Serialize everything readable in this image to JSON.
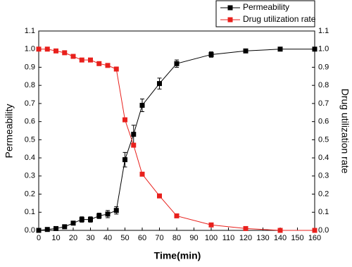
{
  "chart_data": {
    "type": "line",
    "x": [
      0,
      5,
      10,
      15,
      20,
      25,
      30,
      35,
      40,
      45,
      50,
      55,
      60,
      70,
      80,
      100,
      120,
      140,
      160
    ],
    "series": [
      {
        "name": "Permeability",
        "color": "#000000",
        "axis": "y",
        "values": [
          0.0,
          0.005,
          0.01,
          0.02,
          0.04,
          0.06,
          0.06,
          0.08,
          0.09,
          0.11,
          0.39,
          0.53,
          0.69,
          0.81,
          0.92,
          0.97,
          0.99,
          1.0,
          1.0
        ],
        "errors": [
          0.0,
          0.005,
          0.005,
          0.005,
          0.005,
          0.015,
          0.015,
          0.015,
          0.02,
          0.02,
          0.04,
          0.05,
          0.035,
          0.03,
          0.02,
          0.015,
          0.005,
          0.005,
          0.0
        ]
      },
      {
        "name": "Drug utilization rate",
        "color": "#e8201c",
        "axis": "y2",
        "values": [
          1.0,
          1.0,
          0.99,
          0.98,
          0.96,
          0.94,
          0.94,
          0.92,
          0.91,
          0.89,
          0.61,
          0.47,
          0.31,
          0.19,
          0.08,
          0.03,
          0.01,
          0.0,
          0.0
        ]
      }
    ],
    "x_label": "Time(min)",
    "y_label": "Permeability",
    "y2_label": "Drug utilization rate",
    "xlim": [
      0,
      160
    ],
    "xticks": [
      0,
      10,
      20,
      30,
      40,
      50,
      60,
      70,
      80,
      90,
      100,
      110,
      120,
      130,
      140,
      150,
      160
    ],
    "ylim": [
      0,
      1.1
    ],
    "yticks": [
      {
        "value": 0,
        "label": "0.0"
      },
      0.1,
      0.2,
      0.3,
      0.4,
      0.5,
      0.6,
      0.7,
      0.8,
      0.9,
      {
        "value": 1,
        "label": "1.0"
      },
      1.1
    ],
    "y2lim": [
      0,
      1.1
    ],
    "y2ticks": [
      {
        "value": 0,
        "label": "0.0"
      },
      0.1,
      0.2,
      0.3,
      0.4,
      0.5,
      0.6,
      0.7,
      0.8,
      0.9,
      {
        "value": 1,
        "label": "1.0"
      },
      1.1
    ],
    "legend": "top-right"
  }
}
